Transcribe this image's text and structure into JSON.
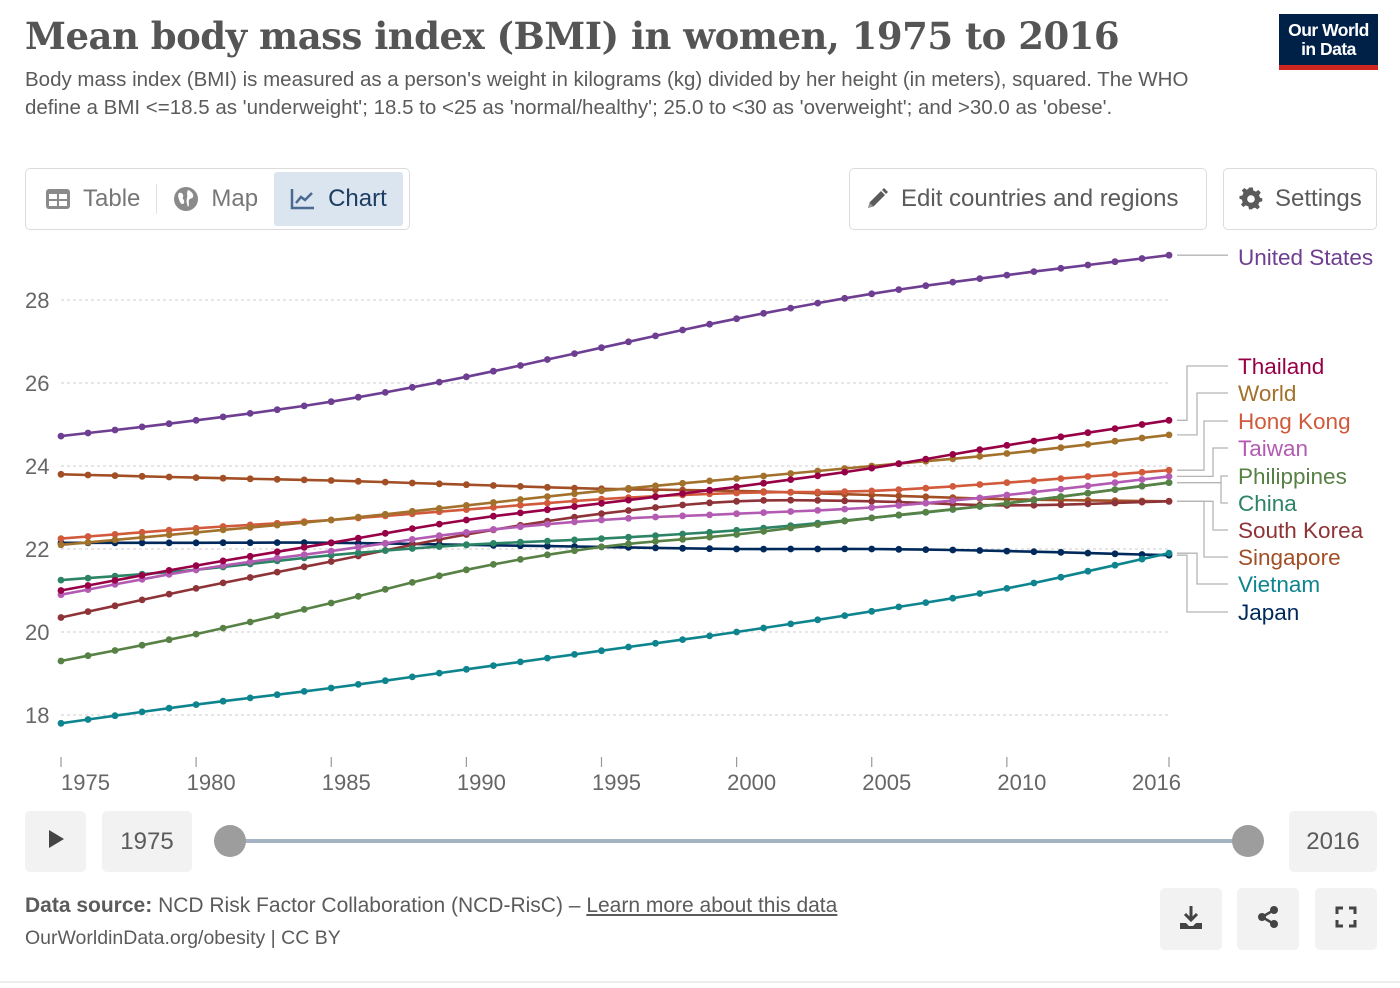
{
  "header": {
    "title": "Mean body mass index (BMI) in women, 1975 to 2016",
    "subtitle": "Body mass index (BMI) is measured as a person's weight in kilograms (kg) divided by her height (in meters), squared. The WHO define a BMI <=18.5 as 'underweight'; 18.5 to <25 as 'normal/healthy'; 25.0 to <30 as 'overweight'; and >30.0 as 'obese'.",
    "logo_line1": "Our World",
    "logo_line2": "in Data"
  },
  "tabs": [
    {
      "label": "Table",
      "icon": "table-icon",
      "active": false
    },
    {
      "label": "Map",
      "icon": "globe-icon",
      "active": false
    },
    {
      "label": "Chart",
      "icon": "line-chart-icon",
      "active": true
    }
  ],
  "toolbar": {
    "edit_label": "Edit countries and regions",
    "settings_label": "Settings"
  },
  "timeline": {
    "start_year": "1975",
    "end_year": "2016",
    "range_min": 1975,
    "range_max": 2016,
    "selected_start": 1975,
    "selected_end": 2016
  },
  "footer": {
    "source_label": "Data source:",
    "source_text": "NCD Risk Factor Collaboration (NCD-RisC) –",
    "learn_more": "Learn more about this data",
    "credit": "OurWorldinData.org/obesity | CC BY"
  },
  "chart_data": {
    "type": "line",
    "title": "Mean body mass index (BMI) in women, 1975 to 2016",
    "xlabel": "",
    "ylabel": "",
    "xlim": [
      1975,
      2016
    ],
    "ylim": [
      17.2,
      29.5
    ],
    "x_ticks": [
      "1975",
      "1980",
      "1985",
      "1990",
      "1995",
      "2000",
      "2005",
      "2010",
      "2016"
    ],
    "x_tick_values": [
      1975,
      1980,
      1985,
      1990,
      1995,
      2000,
      2005,
      2010,
      2016
    ],
    "y_ticks": [
      18,
      20,
      22,
      24,
      26,
      28
    ],
    "grid": "horizontal-dashed",
    "legend": "right-end-labels",
    "key_years": [
      1975,
      1980,
      1985,
      1990,
      1995,
      2000,
      2005,
      2010,
      2016
    ],
    "series": [
      {
        "name": "United States",
        "color": "#6d3e91",
        "values": [
          24.72,
          25.1,
          25.55,
          26.15,
          26.85,
          27.55,
          28.15,
          28.6,
          29.08
        ]
      },
      {
        "name": "Thailand",
        "color": "#970046",
        "values": [
          21.0,
          21.6,
          22.15,
          22.7,
          23.1,
          23.5,
          23.95,
          24.5,
          25.1
        ]
      },
      {
        "name": "World",
        "color": "#a2712c",
        "values": [
          22.1,
          22.4,
          22.7,
          23.05,
          23.4,
          23.7,
          24.0,
          24.3,
          24.75
        ]
      },
      {
        "name": "Hong Kong",
        "color": "#d05a3b",
        "values": [
          22.25,
          22.5,
          22.7,
          22.95,
          23.2,
          23.35,
          23.4,
          23.6,
          23.9
        ]
      },
      {
        "name": "Taiwan",
        "color": "#b35bb2",
        "values": [
          20.9,
          21.5,
          21.95,
          22.4,
          22.7,
          22.85,
          23.0,
          23.3,
          23.75
        ]
      },
      {
        "name": "Philippines",
        "color": "#578145",
        "values": [
          19.3,
          19.95,
          20.7,
          21.5,
          22.05,
          22.35,
          22.75,
          23.1,
          23.6
        ]
      },
      {
        "name": "China",
        "color": "#2c8465",
        "values": [
          21.25,
          21.5,
          21.85,
          22.1,
          22.25,
          22.45,
          22.75,
          23.1,
          23.6
        ]
      },
      {
        "name": "South Korea",
        "color": "#8e3338",
        "values": [
          20.35,
          21.05,
          21.7,
          22.35,
          22.85,
          23.15,
          23.15,
          23.05,
          23.15
        ]
      },
      {
        "name": "Singapore",
        "color": "#a24f26",
        "values": [
          23.8,
          23.72,
          23.65,
          23.55,
          23.45,
          23.4,
          23.3,
          23.2,
          23.15
        ]
      },
      {
        "name": "Vietnam",
        "color": "#0e858e",
        "values": [
          17.8,
          18.25,
          18.65,
          19.1,
          19.55,
          20.0,
          20.5,
          21.05,
          21.9
        ]
      },
      {
        "name": "Japan",
        "color": "#00295b",
        "values": [
          22.15,
          22.15,
          22.15,
          22.1,
          22.05,
          22.0,
          22.0,
          21.95,
          21.85
        ]
      }
    ],
    "label_order": [
      "United States",
      "Thailand",
      "World",
      "Hong Kong",
      "Taiwan",
      "Philippines",
      "China",
      "South Korea",
      "Singapore",
      "Vietnam",
      "Japan"
    ]
  }
}
